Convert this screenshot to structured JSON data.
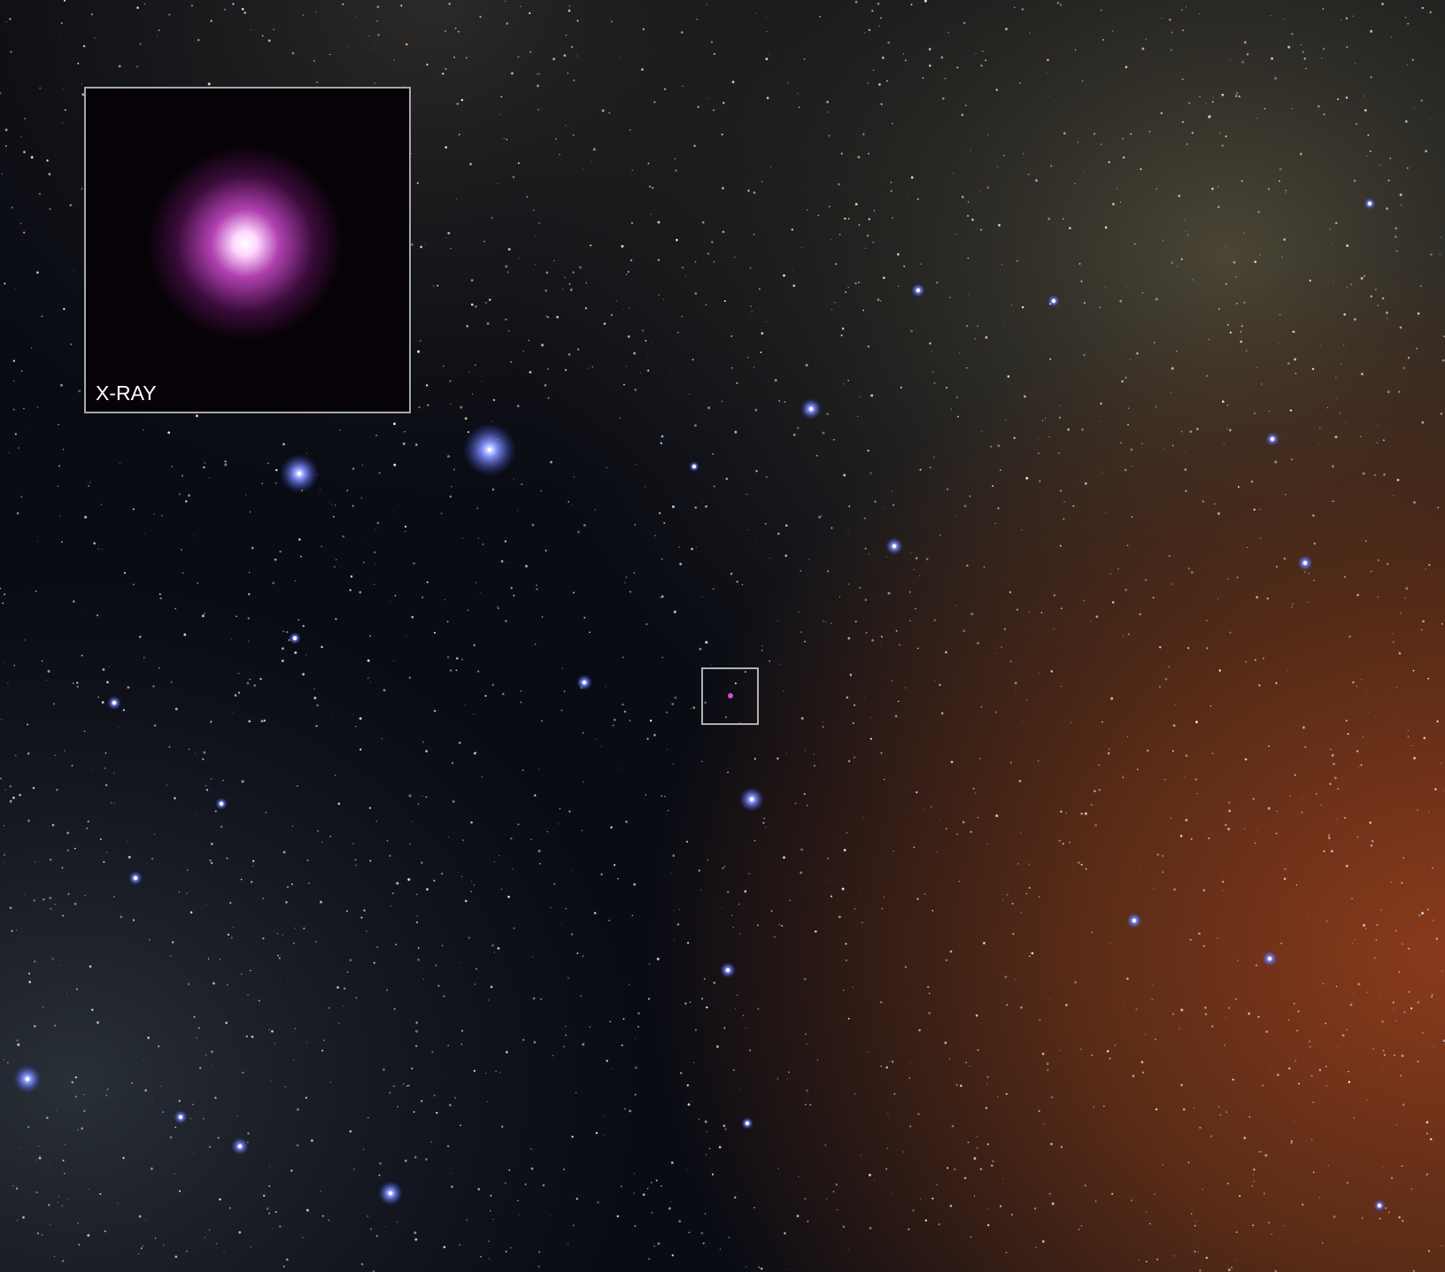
{
  "inset": {
    "label": "X-RAY"
  }
}
